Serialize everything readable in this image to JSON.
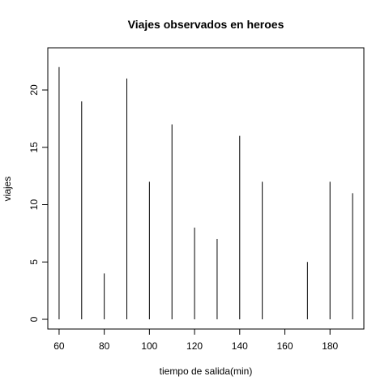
{
  "chart_data": {
    "type": "bar",
    "style": "histogram-spikes",
    "title": "Viajes observados en heroes",
    "xlabel": "tiempo de salida(min)",
    "ylabel": "viajes",
    "x": [
      60,
      70,
      80,
      90,
      100,
      110,
      120,
      130,
      140,
      150,
      160,
      170,
      180,
      190
    ],
    "values": [
      22,
      19,
      4,
      21,
      12,
      17,
      8,
      7,
      16,
      12,
      0,
      5,
      12,
      11
    ],
    "xlim": [
      55,
      195
    ],
    "ylim": [
      0,
      22.9
    ],
    "xticks": [
      60,
      80,
      100,
      120,
      140,
      160,
      180
    ],
    "yticks": [
      0,
      5,
      10,
      15,
      20
    ],
    "grid": false,
    "colors": {
      "bar": "#000000",
      "background": "#ffffff"
    }
  }
}
